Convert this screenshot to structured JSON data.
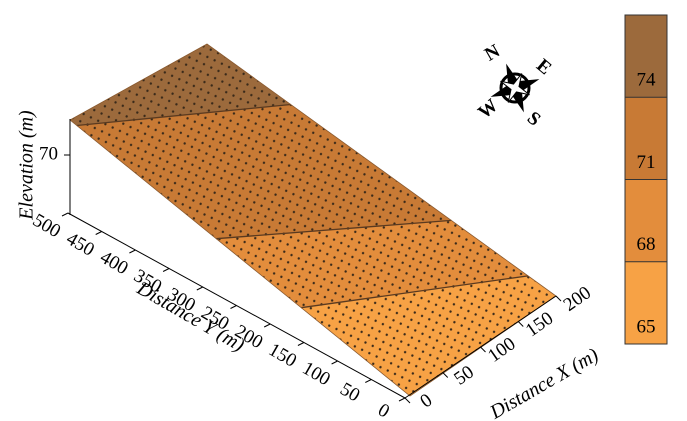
{
  "chart_data": {
    "type": "surface3d",
    "xlabel": "Distance X (m)",
    "ylabel": "Distance Y (m)",
    "zlabel": "Elevation (m)",
    "xlim": [
      0,
      200
    ],
    "xticks": [
      0,
      50,
      100,
      150,
      200
    ],
    "ylim": [
      0,
      500
    ],
    "yticks": [
      0,
      50,
      100,
      150,
      200,
      250,
      300,
      350,
      400,
      450,
      500
    ],
    "zlim": [
      60,
      76
    ],
    "zticks": [
      70
    ],
    "colorbar": {
      "lim": [
        65,
        77
      ],
      "ticks": [
        65,
        68,
        71,
        74
      ],
      "colors": [
        "#f7a245",
        "#e38d3c",
        "#c87a35",
        "#9c6a3c"
      ]
    },
    "compass": [
      "N",
      "E",
      "S",
      "W"
    ]
  }
}
